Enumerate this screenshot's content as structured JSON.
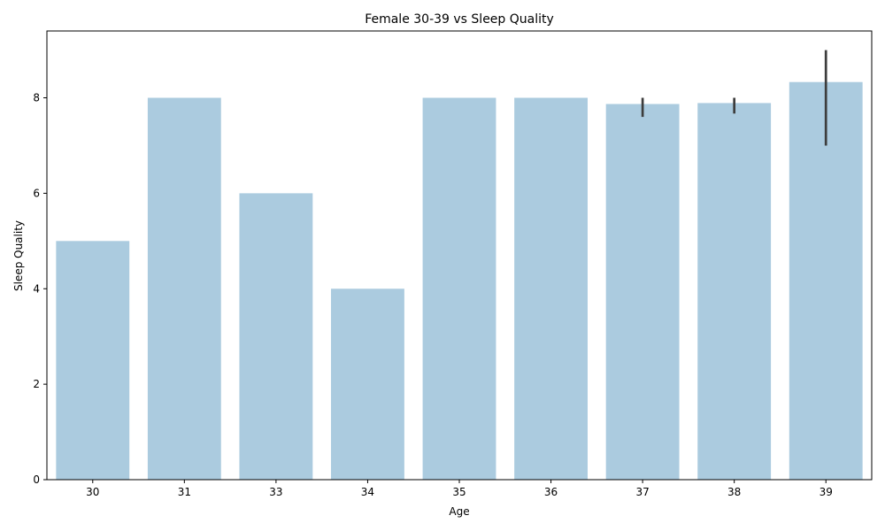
{
  "chart_data": {
    "type": "bar",
    "title": "Female 30-39 vs Sleep Quality",
    "xlabel": "Age",
    "ylabel": "Sleep Quality",
    "categories": [
      "30",
      "31",
      "33",
      "34",
      "35",
      "36",
      "37",
      "38",
      "39"
    ],
    "values": [
      5,
      8,
      6,
      4,
      8,
      8,
      7.87,
      7.89,
      8.33
    ],
    "error_bars": [
      null,
      null,
      null,
      null,
      null,
      null,
      [
        7.6,
        8.0
      ],
      [
        7.67,
        8.0
      ],
      [
        7.0,
        9.0
      ]
    ],
    "ylim": [
      0,
      9.4
    ],
    "yticks": [
      0,
      2,
      4,
      6,
      8
    ],
    "grid": false,
    "legend": "none",
    "colors": {
      "bar": "#abcbdf",
      "error_bar": "#3d3d3d",
      "axis": "#000000"
    }
  }
}
